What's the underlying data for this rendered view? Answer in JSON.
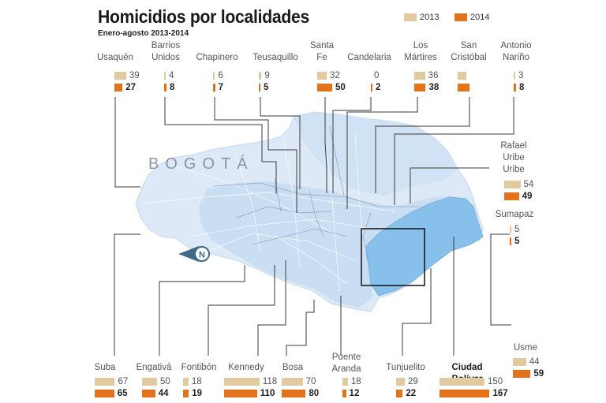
{
  "title": "Homicidios por localidades",
  "subtitle": "Enero-agosto 2013-2014",
  "map_label": "BOGOTÁ",
  "colors": {
    "y2013": "#e2caa0",
    "y2014": "#e3731a",
    "map_light": "#dde9f7",
    "map_mid": "#c6dbf2",
    "map_highlight": "#87c0ea"
  },
  "chart_data": {
    "type": "bar",
    "title": "Homicidios por localidades",
    "subtitle": "Enero-agosto 2013-2014",
    "legend": [
      "2013",
      "2014"
    ],
    "legend_placement": "top-right",
    "categories": [
      "Usaquén",
      "Barrios Unidos",
      "Chapinero",
      "Teusaquillo",
      "Santa Fe",
      "Candelaria",
      "Los Mártires",
      "San Cristóbal",
      "Antonio Nariño",
      "Rafael Uribe Uribe",
      "Sumapaz",
      "Suba",
      "Engativá",
      "Fontibón",
      "Kennedy",
      "Bosa",
      "Puente Aranda",
      "Tunjuelito",
      "Ciudad Bolívar",
      "Usme"
    ],
    "series": [
      {
        "name": "2013",
        "values": [
          39,
          4,
          6,
          9,
          32,
          0,
          36,
          null,
          3,
          54,
          5,
          67,
          50,
          18,
          118,
          70,
          18,
          29,
          150,
          44
        ]
      },
      {
        "name": "2014",
        "values": [
          27,
          8,
          7,
          5,
          50,
          2,
          38,
          null,
          8,
          49,
          5,
          65,
          44,
          19,
          110,
          80,
          12,
          22,
          167,
          59
        ]
      }
    ],
    "labels": [
      {
        "name": "Usaquén",
        "v2013": "39",
        "v2014": "27"
      },
      {
        "name": "Barrios Unidos",
        "v2013": "4",
        "v2014": "8"
      },
      {
        "name": "Chapinero",
        "v2013": "6",
        "v2014": "7"
      },
      {
        "name": "Teusaquillo",
        "v2013": "9",
        "v2014": "5"
      },
      {
        "name": "Santa Fe",
        "v2013": "32",
        "v2014": "50"
      },
      {
        "name": "Candelaria",
        "v2013": "0",
        "v2014": "2"
      },
      {
        "name": "Los Mártires",
        "v2013": "36",
        "v2014": "38"
      },
      {
        "name": "San Cristóbal",
        "v2013": "",
        "v2014": ""
      },
      {
        "name": "Antonio Nariño",
        "v2013": "3",
        "v2014": "8"
      },
      {
        "name": "Rafael Uribe Uribe",
        "v2013": "54",
        "v2014": "49"
      },
      {
        "name": "Sumapaz",
        "v2013": "5",
        "v2014": "5"
      },
      {
        "name": "Suba",
        "v2013": "67",
        "v2014": "65"
      },
      {
        "name": "Engativá",
        "v2013": "50",
        "v2014": "44"
      },
      {
        "name": "Fontibón",
        "v2013": "18",
        "v2014": "19"
      },
      {
        "name": "Kennedy",
        "v2013": "118",
        "v2014": "110"
      },
      {
        "name": "Bosa",
        "v2013": "70",
        "v2014": "80"
      },
      {
        "name": "Puente Aranda",
        "v2013": "18",
        "v2014": "12"
      },
      {
        "name": "Tunjuelito",
        "v2013": "29",
        "v2014": "22"
      },
      {
        "name": "Ciudad Bolívar",
        "v2013": "150",
        "v2014": "167"
      },
      {
        "name": "Usme",
        "v2013": "44",
        "v2014": "59"
      }
    ],
    "display_bar_values_san_cristobal": [
      30,
      40
    ]
  }
}
